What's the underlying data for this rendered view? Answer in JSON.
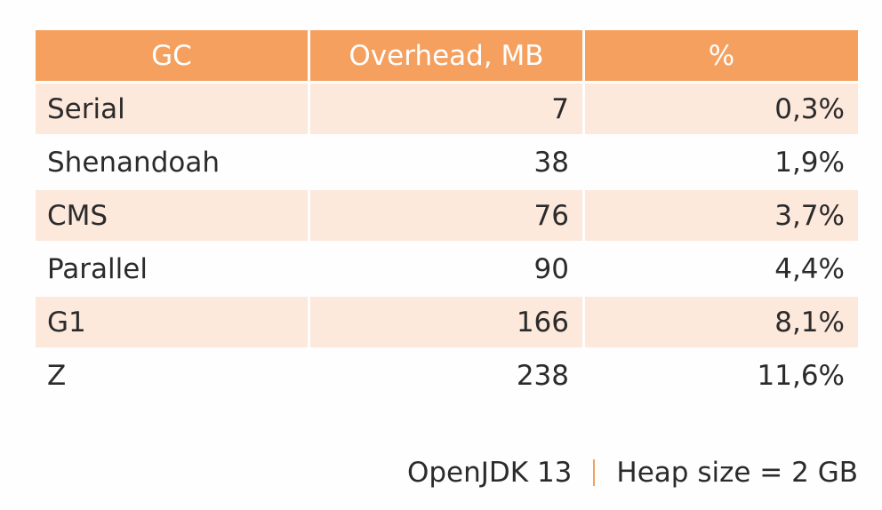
{
  "table": {
    "headers": [
      "GC",
      "Overhead, MB",
      "%"
    ],
    "rows": [
      {
        "gc": "Serial",
        "overhead": "7",
        "percent": "0,3%"
      },
      {
        "gc": "Shenandoah",
        "overhead": "38",
        "percent": "1,9%"
      },
      {
        "gc": "CMS",
        "overhead": "76",
        "percent": "3,7%"
      },
      {
        "gc": "Parallel",
        "overhead": "90",
        "percent": "4,4%"
      },
      {
        "gc": "G1",
        "overhead": "166",
        "percent": "8,1%"
      },
      {
        "gc": "Z",
        "overhead": "238",
        "percent": "11,6%"
      }
    ]
  },
  "footer": {
    "jdk": "OpenJDK 13",
    "heap": "Heap size = 2 GB"
  },
  "colors": {
    "header_bg": "#f5a05f",
    "stripe_bg": "#fde8dc",
    "divider": "#f2a15f"
  }
}
